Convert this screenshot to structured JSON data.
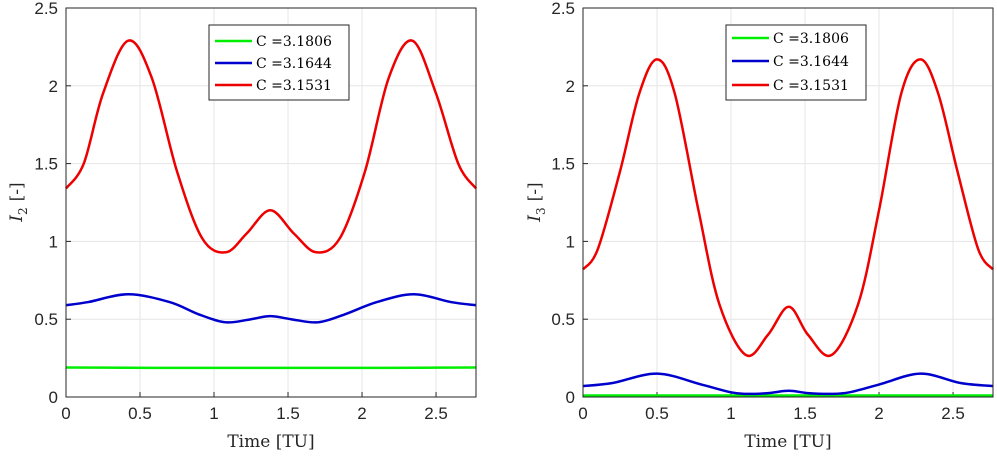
{
  "chart_data": [
    {
      "type": "line",
      "xlabel": "Time [TU]",
      "ylabel_symbol": "I",
      "ylabel_sub": "2",
      "ylabel_unit": "[-]",
      "xlim": [
        0,
        2.77
      ],
      "ylim": [
        0,
        2.5
      ],
      "xticks": [
        "0",
        "0.5",
        "1",
        "1.5",
        "2",
        "2.5"
      ],
      "yticks": [
        "0",
        "0.5",
        "1",
        "1.5",
        "2",
        "2.5"
      ],
      "legend_position": "top-center",
      "series": [
        {
          "name": "C =3.1806",
          "color": "#00ee00",
          "x": [
            0,
            0.4,
            0.8,
            1.2,
            1.6,
            2.0,
            2.4,
            2.77
          ],
          "y": [
            0.19,
            0.188,
            0.187,
            0.187,
            0.187,
            0.187,
            0.188,
            0.19
          ]
        },
        {
          "name": "C =3.1644",
          "color": "#0000cc",
          "x": [
            0,
            0.15,
            0.42,
            0.7,
            0.9,
            1.08,
            1.25,
            1.38,
            1.52,
            1.7,
            1.88,
            2.1,
            2.35,
            2.6,
            2.77
          ],
          "y": [
            0.59,
            0.61,
            0.66,
            0.61,
            0.53,
            0.48,
            0.5,
            0.52,
            0.5,
            0.48,
            0.53,
            0.61,
            0.66,
            0.61,
            0.59
          ]
        },
        {
          "name": "C =3.1531",
          "color": "#ee0000",
          "x": [
            0,
            0.12,
            0.25,
            0.42,
            0.58,
            0.75,
            0.92,
            1.08,
            1.22,
            1.38,
            1.54,
            1.69,
            1.85,
            2.02,
            2.18,
            2.34,
            2.5,
            2.65,
            2.77
          ],
          "y": [
            1.34,
            1.5,
            1.95,
            2.29,
            2.05,
            1.45,
            1.02,
            0.93,
            1.05,
            1.2,
            1.05,
            0.93,
            1.02,
            1.45,
            2.05,
            2.29,
            1.95,
            1.5,
            1.34
          ]
        }
      ]
    },
    {
      "type": "line",
      "xlabel": "Time [TU]",
      "ylabel_symbol": "I",
      "ylabel_sub": "3",
      "ylabel_unit": "[-]",
      "xlim": [
        0,
        2.77
      ],
      "ylim": [
        0,
        2.5
      ],
      "xticks": [
        "0",
        "0.5",
        "1",
        "1.5",
        "2",
        "2.5"
      ],
      "yticks": [
        "0",
        "0.5",
        "1",
        "1.5",
        "2",
        "2.5"
      ],
      "legend_position": "top-right",
      "series": [
        {
          "name": "C =3.1806",
          "color": "#00ee00",
          "x": [
            0,
            0.7,
            1.4,
            2.1,
            2.77
          ],
          "y": [
            0.01,
            0.01,
            0.01,
            0.01,
            0.01
          ]
        },
        {
          "name": "C =3.1644",
          "color": "#0000cc",
          "x": [
            0,
            0.2,
            0.5,
            0.8,
            1.0,
            1.1,
            1.25,
            1.39,
            1.52,
            1.68,
            1.8,
            2.0,
            2.28,
            2.55,
            2.77
          ],
          "y": [
            0.07,
            0.09,
            0.15,
            0.08,
            0.03,
            0.02,
            0.025,
            0.04,
            0.025,
            0.02,
            0.03,
            0.08,
            0.15,
            0.09,
            0.07
          ]
        },
        {
          "name": "C =3.1531",
          "color": "#ee0000",
          "x": [
            0,
            0.1,
            0.25,
            0.38,
            0.5,
            0.62,
            0.78,
            0.92,
            1.1,
            1.25,
            1.39,
            1.52,
            1.68,
            1.86,
            2.0,
            2.15,
            2.28,
            2.4,
            2.53,
            2.67,
            2.77
          ],
          "y": [
            0.82,
            0.95,
            1.45,
            1.95,
            2.17,
            1.95,
            1.2,
            0.6,
            0.27,
            0.4,
            0.58,
            0.4,
            0.27,
            0.6,
            1.2,
            1.95,
            2.17,
            1.95,
            1.45,
            0.95,
            0.82
          ]
        }
      ]
    }
  ]
}
